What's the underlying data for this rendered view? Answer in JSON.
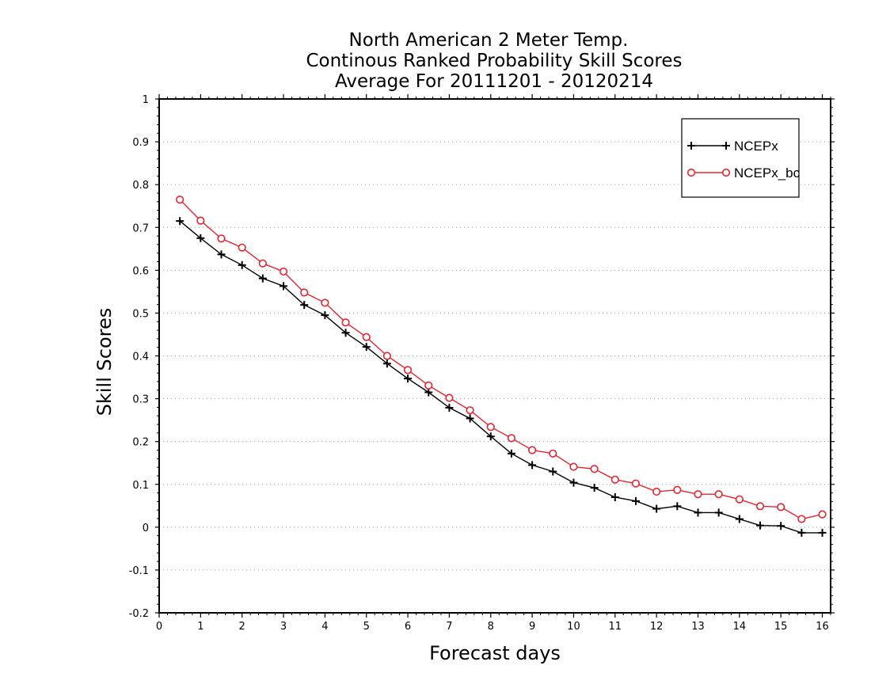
{
  "chart_data": {
    "type": "line",
    "title_lines": [
      "North American 2 Meter Temp.",
      "Continous Ranked Probability Skill Scores",
      "Average For 20111201 - 20120214"
    ],
    "xlabel": "Forecast days",
    "ylabel": "Skill Scores",
    "xlim": [
      0,
      16.2
    ],
    "ylim": [
      -0.2,
      1.0
    ],
    "x_ticks": [
      0,
      1,
      2,
      3,
      4,
      5,
      6,
      7,
      8,
      9,
      10,
      11,
      12,
      13,
      14,
      15,
      16
    ],
    "x_tick_labels": [
      "0",
      "1",
      "2",
      "3",
      "4",
      "5",
      "6",
      "7",
      "8",
      "9",
      "10",
      "11",
      "12",
      "13",
      "14",
      "15",
      "16"
    ],
    "y_ticks": [
      -0.2,
      -0.1,
      0,
      0.1,
      0.2,
      0.3,
      0.4,
      0.5,
      0.6,
      0.7,
      0.8,
      0.9,
      1
    ],
    "y_tick_labels": [
      "-0.2",
      "-0.1",
      "0",
      "0.1",
      "0.2",
      "0.3",
      "0.4",
      "0.5",
      "0.6",
      "0.7",
      "0.8",
      "0.9",
      "1"
    ],
    "grid": "horizontal dotted",
    "legend_position": "top-right",
    "x": [
      0.5,
      1.0,
      1.5,
      2.0,
      2.5,
      3.0,
      3.5,
      4.0,
      4.5,
      5.0,
      5.5,
      6.0,
      6.5,
      7.0,
      7.5,
      8.0,
      8.5,
      9.0,
      9.5,
      10.0,
      10.5,
      11.0,
      11.5,
      12.0,
      12.5,
      13.0,
      13.5,
      14.0,
      14.5,
      15.0,
      15.5,
      16.0
    ],
    "series": [
      {
        "name": "NCEPx",
        "color": "#000000",
        "marker": "plus",
        "values": [
          0.715,
          0.675,
          0.637,
          0.612,
          0.581,
          0.563,
          0.519,
          0.495,
          0.454,
          0.421,
          0.382,
          0.347,
          0.315,
          0.279,
          0.254,
          0.212,
          0.172,
          0.145,
          0.13,
          0.104,
          0.092,
          0.07,
          0.061,
          0.043,
          0.049,
          0.034,
          0.034,
          0.019,
          0.004,
          0.003,
          -0.013,
          -0.013
        ]
      },
      {
        "name": "NCEPx_bc",
        "color": "#e8242f",
        "marker": "circle",
        "values": [
          0.765,
          0.716,
          0.674,
          0.653,
          0.616,
          0.597,
          0.548,
          0.524,
          0.478,
          0.444,
          0.4,
          0.367,
          0.331,
          0.302,
          0.273,
          0.234,
          0.208,
          0.18,
          0.172,
          0.141,
          0.136,
          0.111,
          0.102,
          0.083,
          0.087,
          0.077,
          0.077,
          0.065,
          0.049,
          0.047,
          0.019,
          0.03
        ]
      }
    ]
  }
}
